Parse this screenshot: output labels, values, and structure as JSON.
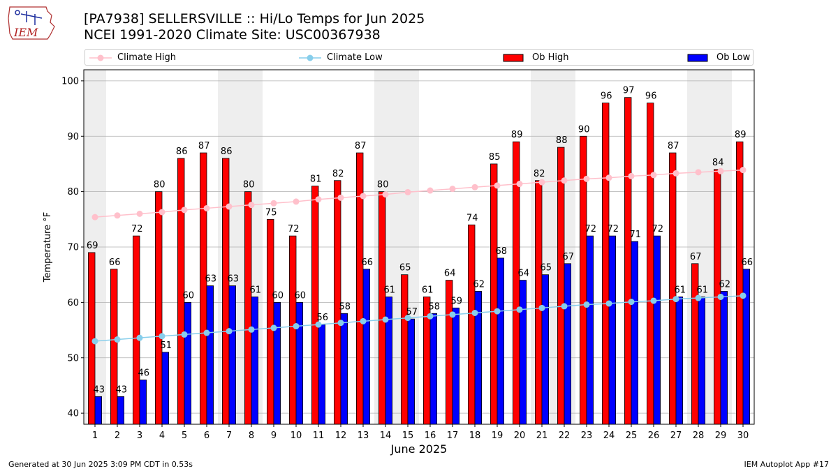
{
  "header": {
    "logo_text": "IEM",
    "title_line1": "[PA7938] SELLERSVILLE :: Hi/Lo Temps for Jun 2025",
    "title_line2": "NCEI 1991-2020 Climate Site: USC00367938"
  },
  "footer": {
    "generated": "Generated at 30 Jun 2025 3:09 PM CDT in 0.53s",
    "app": "IEM Autoplot App #17"
  },
  "colors": {
    "ob_high": "#ff0000",
    "ob_low": "#0000ff",
    "climate_high": "#ffc0cb",
    "climate_low": "#87ceeb",
    "weekend_shade": "#eeeeee",
    "grid": "#b0b0b0"
  },
  "chart_data": {
    "type": "bar",
    "title": "[PA7938] SELLERSVILLE :: Hi/Lo Temps for Jun 2025",
    "subtitle": "NCEI 1991-2020 Climate Site: USC00367938",
    "xlabel": "June 2025",
    "ylabel": "Temperature °F",
    "ylim": [
      38,
      102
    ],
    "yticks": [
      40,
      50,
      60,
      70,
      80,
      90,
      100
    ],
    "grid": true,
    "legend_position": "top",
    "categories": [
      "1",
      "2",
      "3",
      "4",
      "5",
      "6",
      "7",
      "8",
      "9",
      "10",
      "11",
      "12",
      "13",
      "14",
      "15",
      "16",
      "17",
      "18",
      "19",
      "20",
      "21",
      "22",
      "23",
      "24",
      "25",
      "26",
      "27",
      "28",
      "29",
      "30"
    ],
    "weekend_days": [
      1,
      7,
      8,
      14,
      15,
      21,
      22,
      28,
      29
    ],
    "series": [
      {
        "name": "Ob High",
        "kind": "bar",
        "values": [
          69,
          66,
          72,
          80,
          86,
          87,
          86,
          80,
          75,
          72,
          81,
          82,
          87,
          80,
          65,
          61,
          64,
          74,
          85,
          89,
          82,
          88,
          90,
          96,
          97,
          96,
          87,
          67,
          84,
          89
        ]
      },
      {
        "name": "Ob Low",
        "kind": "bar",
        "values": [
          43,
          43,
          46,
          51,
          60,
          63,
          63,
          61,
          60,
          60,
          56,
          58,
          66,
          61,
          57,
          58,
          59,
          62,
          68,
          64,
          65,
          67,
          72,
          72,
          71,
          72,
          61,
          61,
          62,
          66
        ]
      },
      {
        "name": "Climate High",
        "kind": "line",
        "values": [
          75.4,
          75.7,
          76.0,
          76.3,
          76.7,
          77.0,
          77.3,
          77.6,
          77.9,
          78.2,
          78.6,
          78.9,
          79.2,
          79.5,
          79.9,
          80.2,
          80.5,
          80.8,
          81.1,
          81.4,
          81.7,
          82.0,
          82.3,
          82.5,
          82.8,
          83.0,
          83.3,
          83.5,
          83.7,
          83.9
        ]
      },
      {
        "name": "Climate Low",
        "kind": "line",
        "values": [
          53.0,
          53.3,
          53.6,
          53.9,
          54.2,
          54.5,
          54.8,
          55.1,
          55.4,
          55.7,
          56.0,
          56.3,
          56.6,
          56.9,
          57.2,
          57.5,
          57.8,
          58.1,
          58.4,
          58.7,
          59.0,
          59.3,
          59.6,
          59.8,
          60.1,
          60.3,
          60.6,
          60.8,
          61.0,
          61.2
        ]
      }
    ]
  }
}
